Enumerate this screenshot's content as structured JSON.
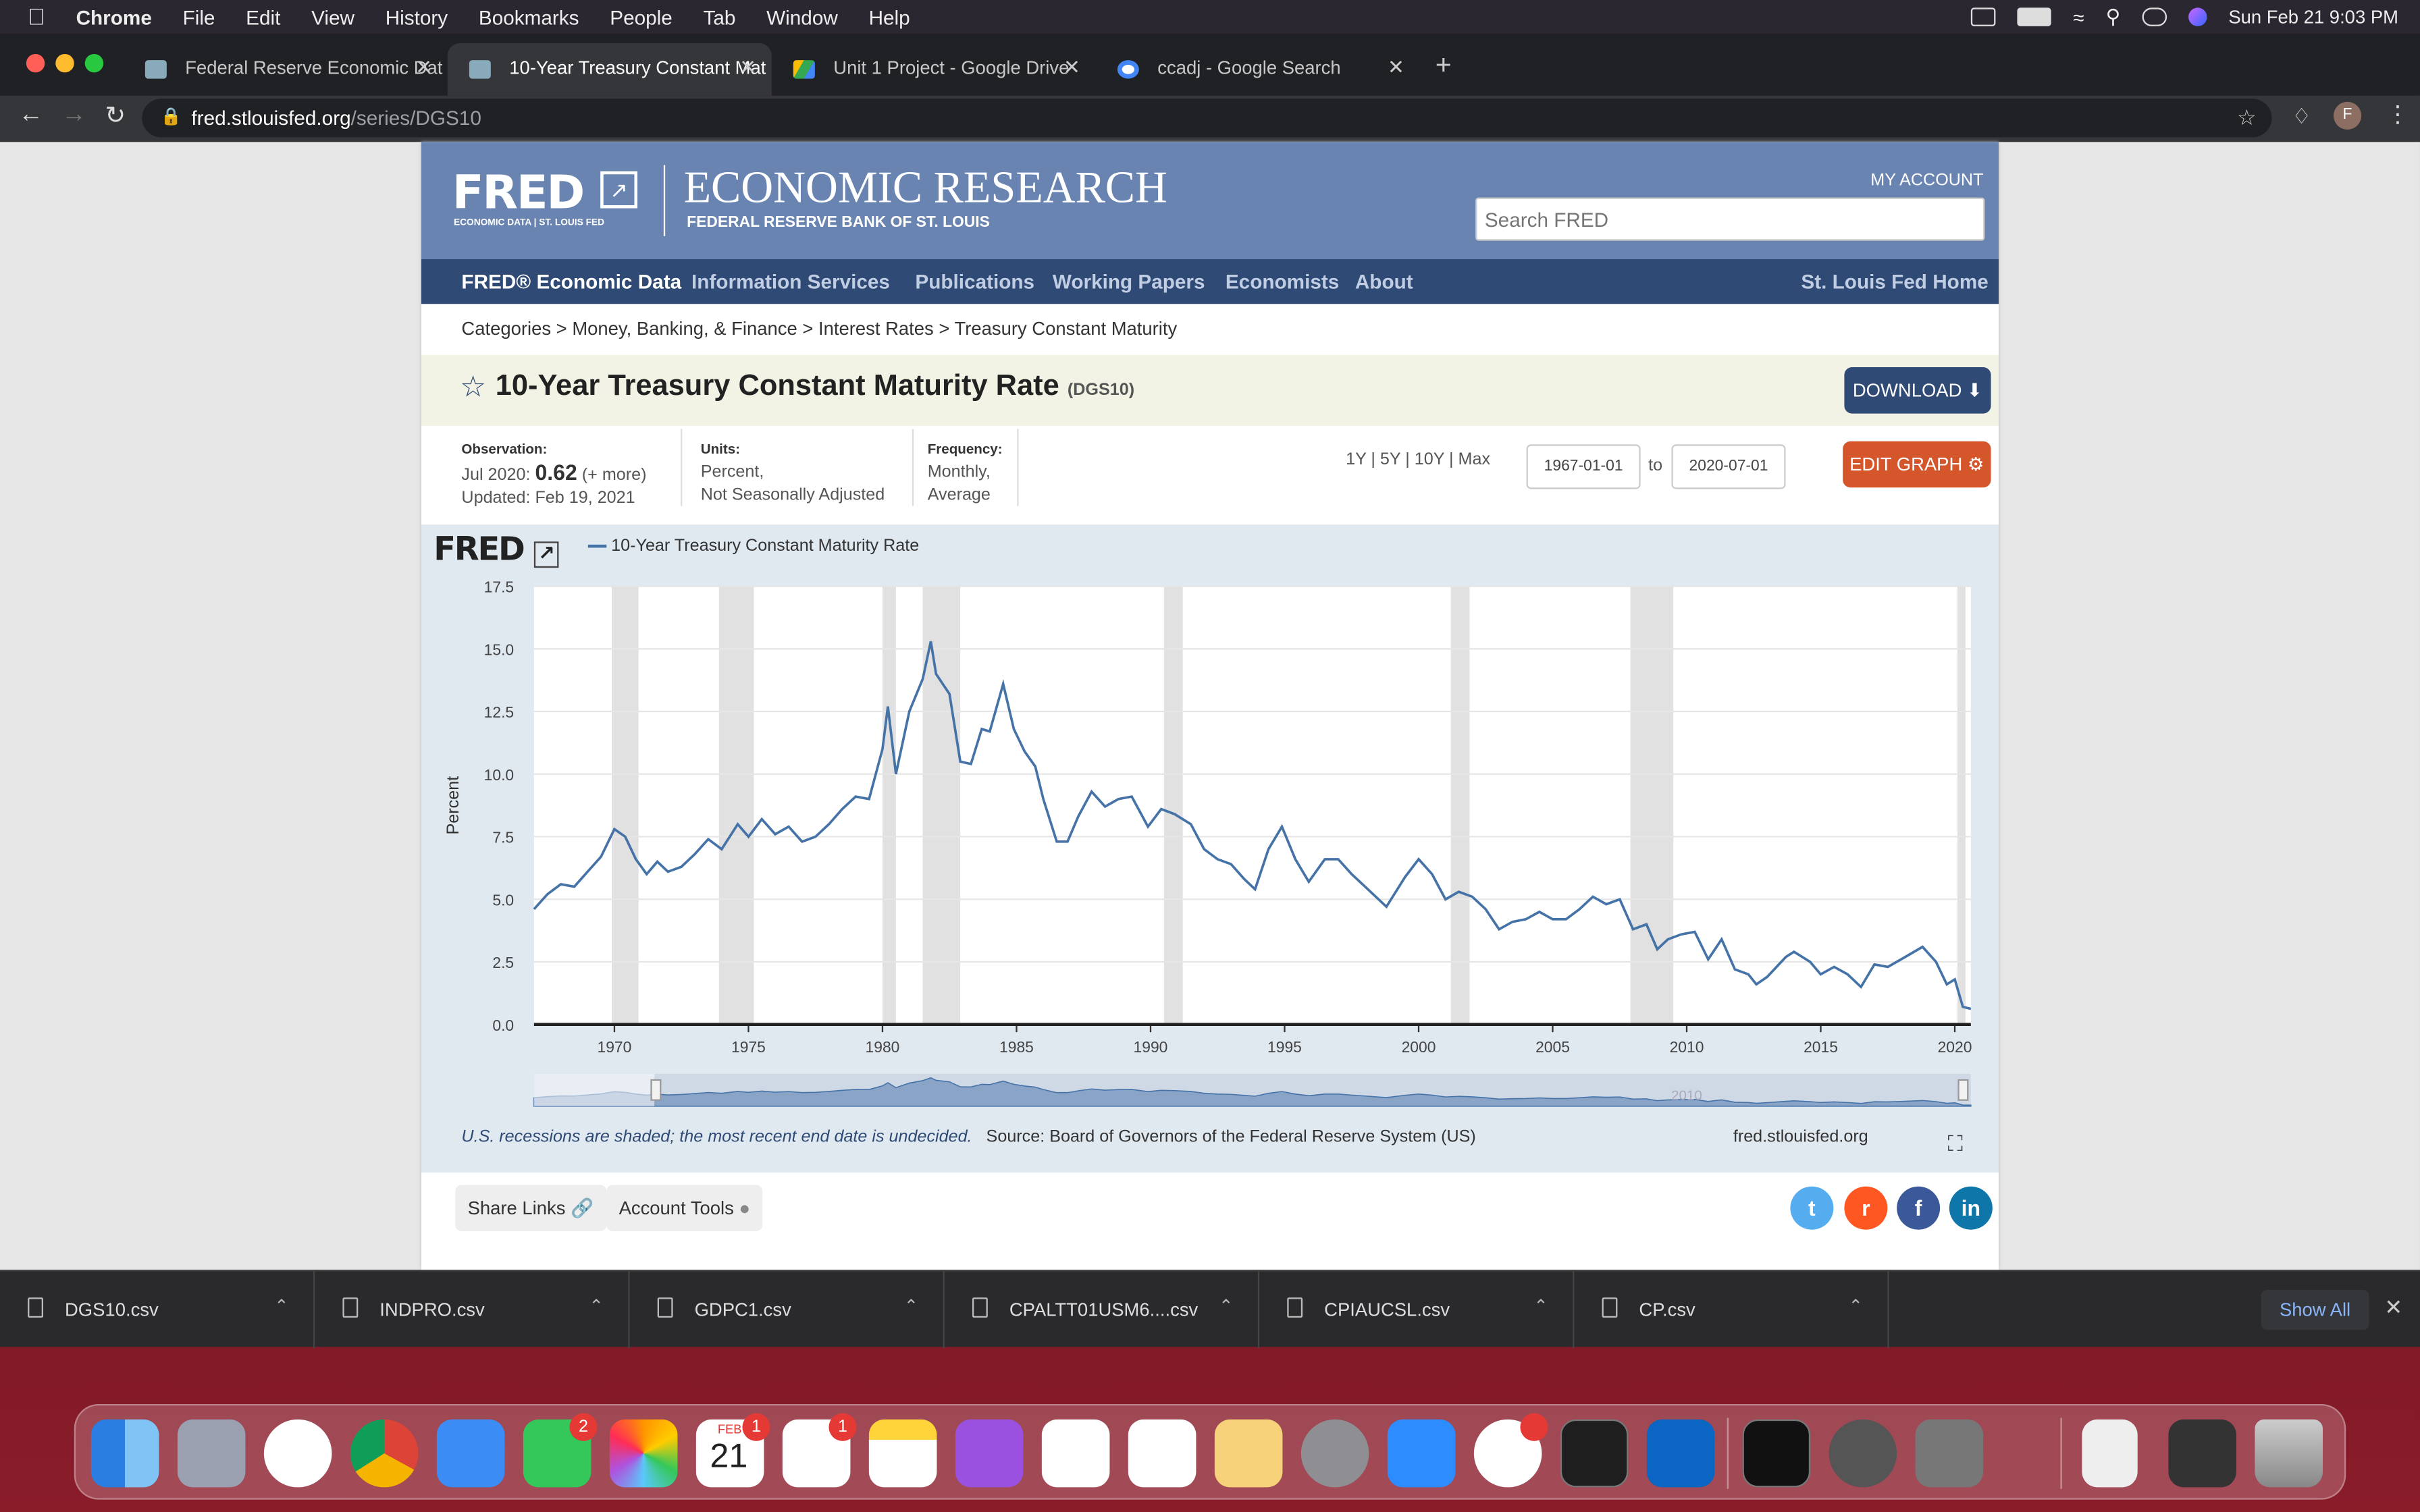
{
  "menubar": {
    "app": "Chrome",
    "items": [
      "File",
      "Edit",
      "View",
      "History",
      "Bookmarks",
      "People",
      "Tab",
      "Window",
      "Help"
    ],
    "clock": "Sun Feb 21  9:03 PM"
  },
  "tabs": [
    {
      "title": "Federal Reserve Economic Dat"
    },
    {
      "title": "10-Year Treasury Constant Mat"
    },
    {
      "title": "Unit 1 Project - Google Drive"
    },
    {
      "title": "ccadj - Google Search"
    }
  ],
  "address": {
    "domain": "fred.stlouisfed.org",
    "path": "/series/DGS10"
  },
  "profile_initial": "F",
  "fred": {
    "logo_text": "FRED",
    "logo_sub": "ECONOMIC DATA  |  ST. LOUIS FED",
    "header_title": "ECONOMIC RESEARCH",
    "header_sub": "FEDERAL RESERVE BANK OF ST. LOUIS",
    "my_account": "MY ACCOUNT",
    "search_placeholder": "Search FRED",
    "nav": [
      "FRED® Economic Data",
      "Information Services",
      "Publications",
      "Working Papers",
      "Economists",
      "About"
    ],
    "nav_right": "St. Louis Fed Home",
    "breadcrumb": "Categories > Money, Banking, & Finance > Interest Rates > Treasury Constant Maturity",
    "title": "10-Year Treasury Constant Maturity Rate",
    "series_id": "(DGS10)",
    "download": "DOWNLOAD",
    "observation_label": "Observation:",
    "observation_date": "Jul 2020:",
    "observation_value": "0.62",
    "observation_more": "(+ more)",
    "updated": "Updated: Feb 19, 2021",
    "units_label": "Units:",
    "units_line1": "Percent,",
    "units_line2": "Not Seasonally Adjusted",
    "freq_label": "Frequency:",
    "freq_line1": "Monthly,",
    "freq_line2": "Average",
    "ranges": "1Y | 5Y | 10Y | Max",
    "date_from": "1967-01-01",
    "to": "to",
    "date_to": "2020-07-01",
    "edit_graph": "EDIT GRAPH",
    "recession_note": "U.S. recessions are shaded; the most recent end date is undecided.",
    "source": "Source: Board of Governors of the Federal Reserve System (US)",
    "site": "fred.stlouisfed.org",
    "share_links": "Share Links",
    "account_tools": "Account Tools",
    "navigator_ticks": [
      "2010"
    ]
  },
  "chart_data": {
    "type": "line",
    "legend": "10-Year Treasury Constant Maturity Rate",
    "ylabel": "Percent",
    "xlabel": "",
    "ylim": [
      0,
      17.5
    ],
    "xlim": [
      1967,
      2020.6
    ],
    "yticks": [
      "0.0",
      "2.5",
      "5.0",
      "7.5",
      "10.0",
      "12.5",
      "15.0",
      "17.5"
    ],
    "xticks": [
      "1970",
      "1975",
      "1980",
      "1985",
      "1990",
      "1995",
      "2000",
      "2005",
      "2010",
      "2015",
      "2020"
    ],
    "recessions": [
      [
        1969.9,
        1970.9
      ],
      [
        1973.9,
        1975.2
      ],
      [
        1980.0,
        1980.5
      ],
      [
        1981.5,
        1982.9
      ],
      [
        1990.5,
        1991.2
      ],
      [
        2001.2,
        2001.9
      ],
      [
        2007.9,
        2009.5
      ],
      [
        2020.1,
        2020.4
      ]
    ],
    "series": [
      {
        "name": "10-Year Treasury Constant Maturity Rate",
        "x": [
          1967.0,
          1967.5,
          1968.0,
          1968.5,
          1969.0,
          1969.5,
          1970.0,
          1970.4,
          1970.8,
          1971.2,
          1971.6,
          1972.0,
          1972.5,
          1973.0,
          1973.5,
          1974.0,
          1974.6,
          1975.0,
          1975.5,
          1976.0,
          1976.5,
          1977.0,
          1977.5,
          1978.0,
          1978.5,
          1979.0,
          1979.5,
          1980.0,
          1980.2,
          1980.5,
          1980.8,
          1981.0,
          1981.5,
          1981.8,
          1982.0,
          1982.5,
          1982.9,
          1983.3,
          1983.7,
          1984.0,
          1984.5,
          1984.9,
          1985.3,
          1985.7,
          1986.0,
          1986.5,
          1986.9,
          1987.3,
          1987.8,
          1988.3,
          1988.8,
          1989.3,
          1989.9,
          1990.4,
          1990.9,
          1991.5,
          1992.0,
          1992.5,
          1993.0,
          1993.5,
          1993.9,
          1994.4,
          1994.9,
          1995.4,
          1995.9,
          1996.5,
          1997.0,
          1997.5,
          1998.0,
          1998.8,
          1999.5,
          2000.0,
          2000.5,
          2001.0,
          2001.5,
          2002.0,
          2002.5,
          2003.0,
          2003.5,
          2004.0,
          2004.5,
          2005.0,
          2005.5,
          2006.0,
          2006.5,
          2007.0,
          2007.5,
          2008.0,
          2008.5,
          2008.9,
          2009.3,
          2009.8,
          2010.3,
          2010.8,
          2011.3,
          2011.8,
          2012.3,
          2012.6,
          2013.0,
          2013.7,
          2014.0,
          2014.6,
          2015.0,
          2015.5,
          2016.0,
          2016.5,
          2017.0,
          2017.5,
          2018.0,
          2018.8,
          2019.3,
          2019.7,
          2020.0,
          2020.3,
          2020.6
        ],
        "y": [
          4.6,
          5.2,
          5.6,
          5.5,
          6.1,
          6.7,
          7.8,
          7.5,
          6.6,
          6.0,
          6.5,
          6.1,
          6.3,
          6.8,
          7.4,
          7.0,
          8.0,
          7.5,
          8.2,
          7.6,
          7.9,
          7.3,
          7.5,
          8.0,
          8.6,
          9.1,
          9.0,
          11.0,
          12.7,
          10.0,
          11.5,
          12.5,
          13.8,
          15.3,
          14.0,
          13.2,
          10.5,
          10.4,
          11.8,
          11.7,
          13.6,
          11.8,
          10.9,
          10.3,
          9.0,
          7.3,
          7.3,
          8.3,
          9.3,
          8.7,
          9.0,
          9.1,
          7.9,
          8.6,
          8.4,
          8.0,
          7.0,
          6.6,
          6.4,
          5.8,
          5.4,
          7.0,
          7.9,
          6.6,
          5.7,
          6.6,
          6.6,
          6.0,
          5.5,
          4.7,
          5.9,
          6.6,
          6.0,
          5.0,
          5.3,
          5.1,
          4.6,
          3.8,
          4.1,
          4.2,
          4.5,
          4.2,
          4.2,
          4.6,
          5.1,
          4.8,
          5.0,
          3.8,
          4.0,
          3.0,
          3.4,
          3.6,
          3.7,
          2.6,
          3.4,
          2.2,
          2.0,
          1.6,
          1.9,
          2.7,
          2.9,
          2.5,
          2.0,
          2.3,
          2.0,
          1.5,
          2.4,
          2.3,
          2.6,
          3.1,
          2.5,
          1.6,
          1.8,
          0.7,
          0.62
        ]
      }
    ]
  },
  "downloads": [
    "DGS10.csv",
    "INDPRO.csv",
    "GDPC1.csv",
    "CPALTT01USM6....csv",
    "CPIAUCSL.csv",
    "CP.csv"
  ],
  "show_all": "Show All",
  "dock": {
    "calendar_month": "FEB",
    "calendar_day": "21",
    "badges": {
      "messages": "2",
      "calendar": "1",
      "reminders": "1"
    }
  },
  "colors": {
    "fred_header": "#6984b0",
    "fred_nav": "#2e4a75",
    "series_line": "#4572a7",
    "edit": "#d6562b"
  }
}
